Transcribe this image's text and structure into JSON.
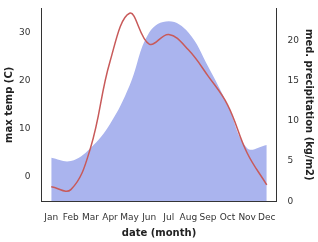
{
  "chart_data": {
    "type": "line",
    "xlabel": "date (month)",
    "ylabel": "max temp (C)",
    "y2label": "med. precipitation (kg/m2)",
    "categories": [
      "Jan",
      "Feb",
      "Mar",
      "Apr",
      "May",
      "Jun",
      "Jul",
      "Aug",
      "Sep",
      "Oct",
      "Nov",
      "Dec"
    ],
    "series": [
      {
        "type": "line",
        "color": "#c85a5a",
        "axis": "y",
        "values": [
          -2,
          -2.6,
          6,
          24,
          34,
          27.6,
          29.6,
          26.4,
          21,
          15,
          5,
          -1.6
        ]
      },
      {
        "type": "area",
        "color": "#aab4ee",
        "axis": "y2",
        "values": [
          5.4,
          5,
          6.6,
          9.6,
          14.4,
          21,
          22.4,
          21,
          16.8,
          12,
          6.6,
          7
        ]
      }
    ],
    "ylim": [
      -5,
      35
    ],
    "yticks": [
      0,
      10,
      20,
      30
    ],
    "y2lim": [
      0,
      24
    ],
    "y2ticks": [
      0,
      5,
      10,
      15,
      20
    ],
    "grid": false
  }
}
